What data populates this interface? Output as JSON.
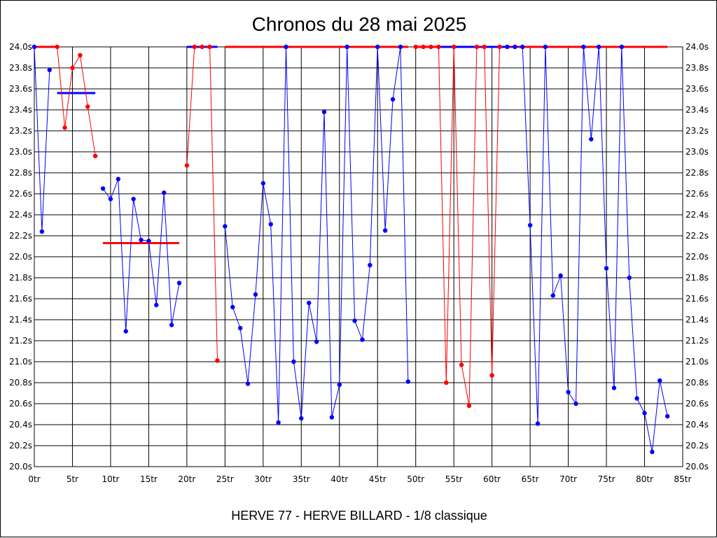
{
  "chart_data": {
    "type": "line",
    "title": "Chronos du 28 mai 2025",
    "subtitle": "HERVE 77 - HERVE BILLARD - 1/8 classique",
    "xlim": [
      0,
      85
    ],
    "ylim": [
      20.0,
      24.0
    ],
    "x_ticks": [
      0,
      5,
      10,
      15,
      20,
      25,
      30,
      35,
      40,
      45,
      50,
      55,
      60,
      65,
      70,
      75,
      80,
      85
    ],
    "x_tick_labels": [
      "0tr",
      "5tr",
      "10tr",
      "15tr",
      "20tr",
      "25tr",
      "30tr",
      "35tr",
      "40tr",
      "45tr",
      "50tr",
      "55tr",
      "60tr",
      "65tr",
      "70tr",
      "75tr",
      "80tr",
      "85tr"
    ],
    "y_ticks": [
      20.0,
      20.2,
      20.4,
      20.6,
      20.8,
      21.0,
      21.2,
      21.4,
      21.6,
      21.8,
      22.0,
      22.2,
      22.4,
      22.6,
      22.8,
      23.0,
      23.2,
      23.4,
      23.6,
      23.8,
      24.0
    ],
    "y_tick_labels": [
      "20.0s",
      "20.2s",
      "20.4s",
      "20.6s",
      "20.8s",
      "21.0s",
      "21.2s",
      "21.4s",
      "21.6s",
      "21.8s",
      "22.0s",
      "22.2s",
      "22.4s",
      "22.6s",
      "22.8s",
      "23.0s",
      "23.2s",
      "23.4s",
      "23.6s",
      "23.8s",
      "24.0s"
    ],
    "grid": true,
    "colors": {
      "blue": "#0000ff",
      "red": "#ff0000"
    },
    "series": [
      {
        "color": "blue",
        "x": [
          0,
          1,
          2
        ],
        "y": [
          24.0,
          22.24,
          23.78
        ]
      },
      {
        "color": "red",
        "x": [
          3,
          4,
          5,
          6,
          7,
          8
        ],
        "y": [
          24.0,
          23.23,
          23.8,
          23.92,
          23.43,
          22.96
        ]
      },
      {
        "color": "blue",
        "x": [
          9,
          10,
          11,
          12,
          13,
          14,
          15,
          16,
          17,
          18,
          19
        ],
        "y": [
          22.65,
          22.55,
          22.74,
          21.29,
          22.55,
          22.16,
          22.15,
          21.54,
          22.61,
          21.35,
          21.75
        ]
      },
      {
        "color": "red",
        "x": [
          20,
          21,
          22,
          23,
          24
        ],
        "y": [
          22.87,
          24.0,
          24.0,
          24.0,
          21.01
        ]
      },
      {
        "color": "blue",
        "x": [
          25,
          26,
          27,
          28,
          29,
          30,
          31,
          32,
          33,
          34,
          35,
          36,
          37,
          38,
          39,
          40,
          41,
          42,
          43,
          44,
          45,
          46,
          47,
          48,
          49
        ],
        "y": [
          22.29,
          21.52,
          21.32,
          20.79,
          21.64,
          22.7,
          22.31,
          20.42,
          24.0,
          21.0,
          20.46,
          21.56,
          21.19,
          23.38,
          20.47,
          20.78,
          24.0,
          21.39,
          21.21,
          21.92,
          24.0,
          22.25,
          23.5,
          24.0,
          20.81
        ]
      },
      {
        "color": "red",
        "x": [
          50,
          51,
          52,
          53,
          54,
          55,
          56,
          57,
          58,
          59,
          60,
          61
        ],
        "y": [
          24.0,
          24.0,
          24.0,
          24.0,
          20.8,
          24.0,
          20.97,
          20.58,
          24.0,
          24.0,
          20.87,
          24.0
        ]
      },
      {
        "color": "blue",
        "x": [
          62,
          63,
          64,
          65,
          66,
          67,
          68,
          69,
          70,
          71,
          72,
          73,
          74,
          75,
          76,
          77,
          78,
          79,
          80,
          81,
          82,
          83
        ],
        "y": [
          24.0,
          24.0,
          24.0,
          22.3,
          20.41,
          24.0,
          21.63,
          21.82,
          20.71,
          20.6,
          24.0,
          23.12,
          24.0,
          21.89,
          20.75,
          24.0,
          21.8,
          20.65,
          20.51,
          20.14,
          20.82,
          20.48
        ]
      }
    ],
    "reference_lines": [
      {
        "color": "red",
        "x": [
          0,
          3
        ],
        "y": 24.0
      },
      {
        "color": "blue",
        "x": [
          3,
          8
        ],
        "y": 23.56
      },
      {
        "color": "red",
        "x": [
          9,
          19
        ],
        "y": 22.13
      },
      {
        "color": "blue",
        "x": [
          20,
          24
        ],
        "y": 24.0
      },
      {
        "color": "red",
        "x": [
          25,
          49
        ],
        "y": 24.0
      },
      {
        "color": "red",
        "x": [
          50,
          53
        ],
        "y": 24.0
      },
      {
        "color": "blue",
        "x": [
          53,
          62
        ],
        "y": 24.0
      },
      {
        "color": "red",
        "x": [
          62,
          83
        ],
        "y": 24.0
      }
    ]
  }
}
